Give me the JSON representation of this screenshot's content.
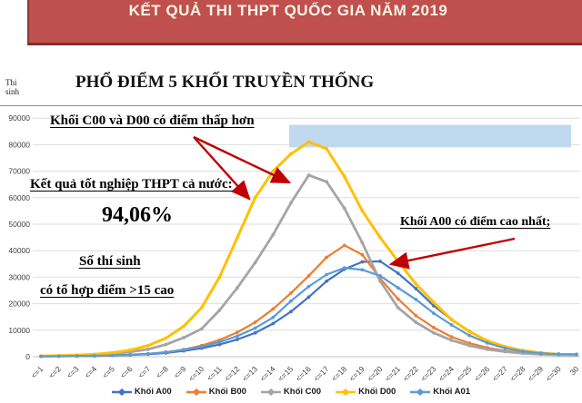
{
  "banner": {
    "title": "KẾT QUẢ THI THPT QUỐC GIA NĂM 2019",
    "bg_color": "#C0504D",
    "text_color": "#F8F3E6"
  },
  "chart_title": "PHỔ ĐIỂM 5 KHỐI TRUYỀN THỐNG",
  "y_axis_unit": "Thi sinh",
  "annotations": {
    "c00_d00_low": "Khối C00 và D00 có điểm thấp hơn",
    "graduation_result": "Kết quả tốt nghiệp THPT cả nước:",
    "graduation_percent": "94,06%",
    "candidates_line1": "Số thí sinh",
    "candidates_line2": "có tổ hợp điểm >15 cao",
    "a00_highest": "Khối A00 có điểm cao nhất;",
    "arrow_color": "#C00000"
  },
  "chart_data": {
    "type": "line",
    "title": "PHỔ ĐIỂM 5 KHỐI TRUYỀN THỐNG",
    "xlabel": "",
    "ylabel": "Thi sinh",
    "ylim": [
      0,
      90000
    ],
    "yticks": [
      0,
      10000,
      20000,
      30000,
      40000,
      50000,
      60000,
      70000,
      80000,
      90000
    ],
    "grid": true,
    "legend_position": "bottom",
    "categories": [
      "<=1",
      "<=2",
      "<=3",
      "<=4",
      "<=5",
      "<=6",
      "<=7",
      "<=8",
      "<=9",
      "<=10",
      "<=11",
      "<=12",
      "<=13",
      "<=14",
      "<=15",
      "<=16",
      "<=17",
      "<=18",
      "<=19",
      "<=20",
      "<=21",
      "<=22",
      "<=23",
      "<=24",
      "<=25",
      "<=26",
      "<=27",
      "<=28",
      "<=29",
      "<=30",
      "30"
    ],
    "series": [
      {
        "name": "Khối A00",
        "color": "#4472C4",
        "values": [
          150,
          200,
          250,
          350,
          450,
          650,
          950,
          1400,
          2200,
          3200,
          4600,
          6500,
          9000,
          12500,
          17000,
          22500,
          28500,
          33000,
          35800,
          36000,
          31500,
          25700,
          19200,
          14000,
          9600,
          5800,
          3500,
          2200,
          1400,
          1000,
          900
        ]
      },
      {
        "name": "Khối B00",
        "color": "#ED7D31",
        "values": [
          100,
          150,
          200,
          300,
          450,
          700,
          1100,
          1700,
          2700,
          4200,
          6300,
          9200,
          13000,
          18000,
          24000,
          30500,
          37500,
          42000,
          38500,
          29500,
          21800,
          15500,
          11000,
          7500,
          5100,
          3400,
          2200,
          1500,
          1000,
          800,
          700
        ]
      },
      {
        "name": "Khối C00",
        "color": "#A5A5A5",
        "values": [
          200,
          300,
          450,
          700,
          1100,
          1800,
          2800,
          4600,
          7200,
          10500,
          17500,
          26000,
          35500,
          46000,
          58000,
          68500,
          66000,
          56000,
          43000,
          28500,
          18500,
          13000,
          9000,
          6200,
          4200,
          2800,
          1900,
          1300,
          900,
          700,
          600
        ]
      },
      {
        "name": "Khối D00",
        "color": "#FFC000",
        "values": [
          300,
          400,
          600,
          900,
          1500,
          2500,
          4200,
          7000,
          11500,
          18500,
          30000,
          45000,
          60000,
          70000,
          76500,
          81000,
          78500,
          68000,
          55000,
          45000,
          36000,
          27500,
          20500,
          14000,
          9500,
          6000,
          3800,
          2300,
          1400,
          900,
          800
        ]
      },
      {
        "name": "Khối A01",
        "color": "#5B9BD5",
        "values": [
          120,
          180,
          250,
          350,
          500,
          750,
          1100,
          1700,
          2600,
          3800,
          5500,
          7800,
          10800,
          14800,
          21000,
          26500,
          31000,
          33500,
          32800,
          30500,
          26000,
          21600,
          16400,
          12000,
          8000,
          5200,
          3200,
          2000,
          1300,
          950,
          850
        ]
      }
    ],
    "highlight_band": {
      "color": "#BDD7EE",
      "y_value_range": [
        79000,
        87500
      ],
      "x_category_range": [
        "<=15",
        "30"
      ]
    }
  }
}
